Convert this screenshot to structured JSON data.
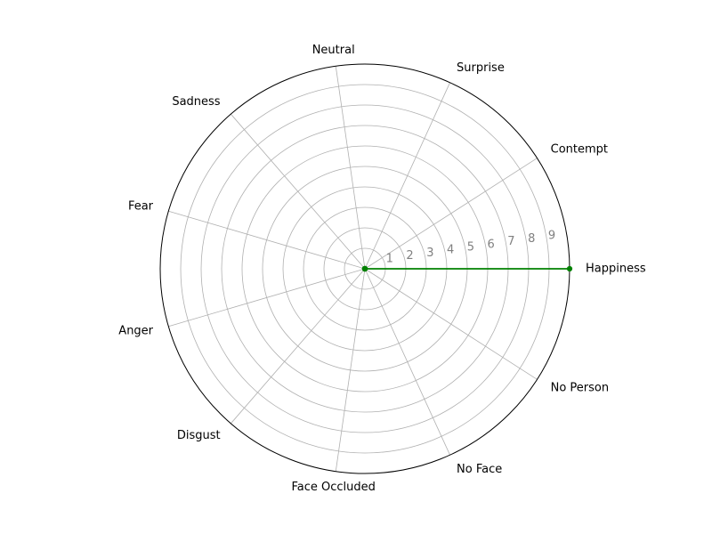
{
  "chart_data": {
    "type": "radar",
    "categories": [
      "Happiness",
      "Contempt",
      "Surprise",
      "Neutral",
      "Sadness",
      "Fear",
      "Anger",
      "Disgust",
      "Face Occluded",
      "No Face",
      "No Person"
    ],
    "series": [
      {
        "values": [
          10,
          0,
          0,
          0,
          0,
          0,
          0,
          0,
          0,
          0,
          0
        ]
      }
    ],
    "rlim": [
      0,
      10
    ],
    "r_ticks": [
      "1",
      "2",
      "3",
      "4",
      "5",
      "6",
      "7",
      "8",
      "9"
    ],
    "grid": true,
    "colors": {
      "series": "#008000",
      "grid": "#b0b0b0",
      "frame": "#000000",
      "tick": "#808080"
    }
  }
}
